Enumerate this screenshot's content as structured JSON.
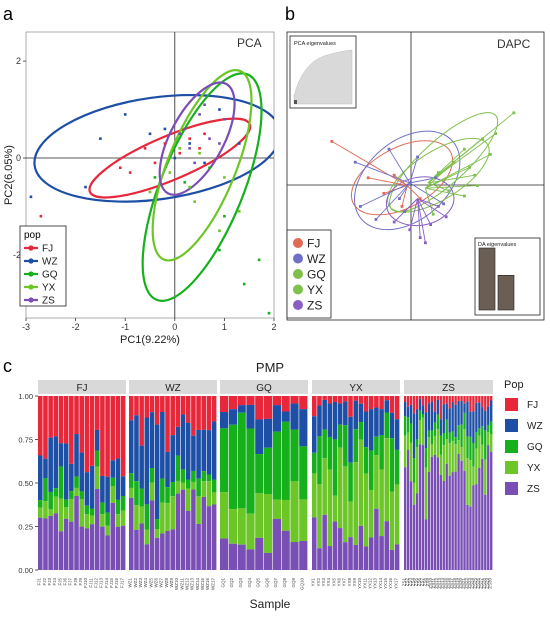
{
  "colors": {
    "FJ": "#e8273a",
    "WZ": "#1d4fa6",
    "GQ": "#16b01d",
    "YX": "#6cc627",
    "ZS": "#7a4fb5",
    "dapc_FJ": "#e06a55",
    "dapc_WZ": "#6f6fc9",
    "dapc_GQ": "#7fbf4a",
    "dapc_YX": "#7fc04e",
    "dapc_ZS": "#8a5fc3",
    "da_bar": "#6b5e55"
  },
  "panel_a": {
    "letter": "a",
    "title": "PCA",
    "xlabel": "PC1(9.22%)",
    "ylabel": "PC2(6.05%)",
    "xticks": [
      "-3",
      "-2",
      "-1",
      "0",
      "1",
      "2"
    ],
    "yticks": [
      "2",
      "0",
      "-2"
    ],
    "legend_title": "pop",
    "legend": [
      "FJ",
      "WZ",
      "GQ",
      "YX",
      "ZS"
    ]
  },
  "panel_b": {
    "letter": "b",
    "title": "DAPC",
    "inset_pca": "PCA eigenvalues",
    "inset_da": "DA eigenvalues",
    "legend": [
      "FJ",
      "WZ",
      "GQ",
      "YX",
      "ZS"
    ],
    "da_eigenvalues": [
      1.0,
      0.56
    ]
  },
  "panel_c": {
    "letter": "c",
    "title": "PMP",
    "xlabel": "Sample",
    "legend_title": "Pop",
    "legend": [
      "FJ",
      "WZ",
      "GQ",
      "YX",
      "ZS"
    ],
    "yticks": [
      "1.00",
      "0.75",
      "0.50",
      "0.25",
      "0.00"
    ],
    "facets": [
      {
        "name": "FJ",
        "samples": [
          "FJ1",
          "FJ2",
          "FJ3",
          "FJ4",
          "FJ5",
          "FJ6",
          "FJ7",
          "FJ8",
          "FJ9",
          "FJ10",
          "FJ11",
          "FJ12",
          "FJ13",
          "FJ14",
          "FJ15",
          "FJ16",
          "FJ17"
        ]
      },
      {
        "name": "WZ",
        "samples": [
          "WZ1",
          "WZ2",
          "WZ3",
          "WZ4",
          "WZ5",
          "WZ6",
          "WZ7",
          "WZ8",
          "WZ9",
          "WZ10",
          "WZ11",
          "WZ12",
          "WZ13",
          "WZ14",
          "WZ15",
          "WZ16",
          "WZ17"
        ]
      },
      {
        "name": "GQ",
        "samples": [
          "GQ1",
          "GQ2",
          "GQ3",
          "GQ4",
          "GQ5",
          "GQ6",
          "GQ7",
          "GQ8",
          "GQ9",
          "GQ10"
        ]
      },
      {
        "name": "YX",
        "samples": [
          "YX1",
          "YX2",
          "YX3",
          "YX4",
          "YX5",
          "YX6",
          "YX7",
          "YX8",
          "YX9",
          "YX10",
          "YX11",
          "YX12",
          "YX13",
          "YX14",
          "YX15",
          "YX16",
          "YX17"
        ]
      },
      {
        "name": "ZS",
        "samples": [
          "ZS1",
          "ZS2",
          "ZS3",
          "ZS4",
          "ZS5",
          "ZS6",
          "ZS7",
          "ZS8",
          "ZS9",
          "ZS10",
          "ZS11",
          "ZS12",
          "ZS13",
          "ZS14",
          "ZS15",
          "ZS16",
          "ZS17",
          "ZS18",
          "ZS19",
          "ZS20",
          "ZS21",
          "ZS22",
          "ZS23",
          "ZS24",
          "ZS25",
          "ZS26",
          "ZS27",
          "ZS28",
          "ZS29",
          "ZS30"
        ]
      }
    ]
  },
  "chart_data": [
    {
      "type": "scatter",
      "title": "PCA",
      "xlabel": "PC1(9.22%)",
      "ylabel": "PC2(6.05%)",
      "xlim": [
        -3,
        2
      ],
      "ylim": [
        -3.3,
        2.6
      ],
      "ellipses": [
        {
          "name": "FJ",
          "cx": -0.1,
          "cy": 0.0,
          "rx": 1.75,
          "ry": 0.45,
          "angle": 23
        },
        {
          "name": "WZ",
          "cx": -0.35,
          "cy": 0.2,
          "rx": 2.5,
          "ry": 1.05,
          "angle": 8
        },
        {
          "name": "GQ",
          "cx": 0.55,
          "cy": -0.6,
          "rx": 2.45,
          "ry": 0.85,
          "angle": 68
        },
        {
          "name": "YX",
          "cx": 0.55,
          "cy": -0.15,
          "rx": 2.05,
          "ry": 0.7,
          "angle": 68
        },
        {
          "name": "ZS",
          "cx": 0.45,
          "cy": 0.4,
          "rx": 1.25,
          "ry": 0.55,
          "angle": 62
        }
      ],
      "series": [
        {
          "name": "FJ",
          "points": [
            [
              -0.9,
              -0.3
            ],
            [
              -0.6,
              0.2
            ],
            [
              -0.4,
              -0.1
            ],
            [
              0.1,
              0.1
            ],
            [
              0.3,
              0.4
            ],
            [
              -1.1,
              -0.2
            ],
            [
              0.5,
              0.2
            ],
            [
              -0.2,
              0.3
            ],
            [
              0.6,
              0.5
            ],
            [
              -2.7,
              -1.2
            ]
          ]
        },
        {
          "name": "WZ",
          "points": [
            [
              -2.9,
              -0.8
            ],
            [
              -1.8,
              -0.6
            ],
            [
              -1.5,
              0.4
            ],
            [
              -1.0,
              0.9
            ],
            [
              -0.5,
              0.5
            ],
            [
              0.0,
              0.0
            ],
            [
              0.3,
              0.3
            ],
            [
              0.9,
              1.0
            ],
            [
              1.3,
              0.3
            ],
            [
              -0.2,
              0.6
            ],
            [
              -2.6,
              -1.7
            ],
            [
              0.6,
              -0.1
            ]
          ]
        },
        {
          "name": "GQ",
          "points": [
            [
              1.0,
              -1.2
            ],
            [
              1.4,
              -2.6
            ],
            [
              1.9,
              -3.2
            ],
            [
              0.7,
              -0.2
            ],
            [
              0.2,
              -0.5
            ],
            [
              0.9,
              -1.9
            ],
            [
              -0.4,
              -0.4
            ],
            [
              1.7,
              -2.1
            ]
          ]
        },
        {
          "name": "YX",
          "points": [
            [
              0.3,
              -0.6
            ],
            [
              0.9,
              -1.5
            ],
            [
              0.1,
              0.2
            ],
            [
              -0.1,
              -0.3
            ],
            [
              0.5,
              0.1
            ],
            [
              1.0,
              -0.4
            ],
            [
              -0.5,
              -0.7
            ],
            [
              0.4,
              -0.9
            ],
            [
              1.3,
              -1.1
            ]
          ]
        },
        {
          "name": "ZS",
          "points": [
            [
              0.2,
              0.6
            ],
            [
              0.5,
              0.9
            ],
            [
              0.9,
              0.3
            ],
            [
              0.3,
              0.2
            ],
            [
              1.0,
              0.8
            ],
            [
              0.6,
              1.1
            ],
            [
              0.1,
              0.5
            ],
            [
              0.7,
              0.4
            ],
            [
              0.4,
              -0.1
            ]
          ]
        }
      ]
    },
    {
      "type": "scatter",
      "title": "DAPC",
      "series": [
        {
          "name": "FJ",
          "centroid": [
            -0.3,
            -0.1
          ],
          "points": [
            [
              -3.2,
              1.6
            ],
            [
              -1.8,
              0.2
            ],
            [
              -1.2,
              -0.4
            ],
            [
              -0.8,
              0.3
            ],
            [
              0.2,
              -0.6
            ],
            [
              -0.5,
              -0.9
            ]
          ]
        },
        {
          "name": "WZ",
          "centroid": [
            -0.2,
            0.0
          ],
          "points": [
            [
              -2.3,
              0.8
            ],
            [
              -2.1,
              -0.9
            ],
            [
              -1.0,
              1.3
            ],
            [
              -0.6,
              -0.6
            ],
            [
              0.8,
              0.2
            ],
            [
              1.1,
              -0.8
            ],
            [
              -1.5,
              -1.4
            ],
            [
              0.1,
              1.0
            ]
          ]
        },
        {
          "name": "GQ",
          "centroid": [
            0.4,
            -0.2
          ],
          "points": [
            [
              2.9,
              1.1
            ],
            [
              2.1,
              0.6
            ],
            [
              1.9,
              -0.5
            ],
            [
              1.5,
              0.8
            ],
            [
              0.7,
              -1.2
            ],
            [
              2.4,
              -0.1
            ]
          ]
        },
        {
          "name": "YX",
          "centroid": [
            0.5,
            0.0
          ],
          "points": [
            [
              3.8,
              2.7
            ],
            [
              2.6,
              1.7
            ],
            [
              2.3,
              0.3
            ],
            [
              1.3,
              -0.3
            ],
            [
              1.9,
              1.3
            ],
            [
              0.9,
              0.4
            ],
            [
              3.1,
              1.9
            ]
          ]
        },
        {
          "name": "ZS",
          "centroid": [
            0.1,
            -0.6
          ],
          "points": [
            [
              0.2,
              -2.1
            ],
            [
              -0.2,
              -1.8
            ],
            [
              -0.8,
              -1.5
            ],
            [
              0.6,
              -1.6
            ],
            [
              0.9,
              -0.9
            ],
            [
              -0.4,
              -1.1
            ],
            [
              0.4,
              -2.3
            ],
            [
              1.2,
              -1.3
            ]
          ]
        }
      ]
    },
    {
      "type": "bar",
      "title": "PMP",
      "stacked": true,
      "xlabel": "Sample",
      "ylim": [
        0,
        1
      ],
      "series_order": [
        "ZS",
        "YX",
        "GQ",
        "WZ",
        "FJ"
      ]
    }
  ]
}
